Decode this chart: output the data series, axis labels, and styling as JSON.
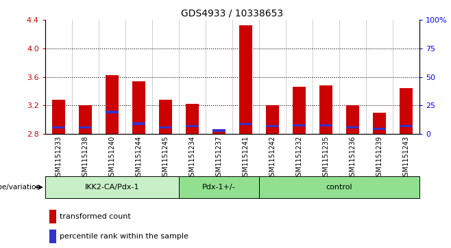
{
  "title": "GDS4933 / 10338653",
  "samples": [
    "GSM1151233",
    "GSM1151238",
    "GSM1151240",
    "GSM1151244",
    "GSM1151245",
    "GSM1151234",
    "GSM1151237",
    "GSM1151241",
    "GSM1151242",
    "GSM1151232",
    "GSM1151235",
    "GSM1151236",
    "GSM1151239",
    "GSM1151243"
  ],
  "group_labels": [
    "IKK2-CA/Pdx-1",
    "Pdx-1+/-",
    "control"
  ],
  "group_starts": [
    0,
    5,
    8
  ],
  "group_ends": [
    5,
    8,
    14
  ],
  "group_colors": [
    "#c8f0c8",
    "#90e090",
    "#90e090"
  ],
  "red_top": [
    3.28,
    3.2,
    3.62,
    3.54,
    3.28,
    3.22,
    2.83,
    4.32,
    3.2,
    3.46,
    3.48,
    3.2,
    3.1,
    3.44
  ],
  "blue_pos": [
    2.875,
    2.875,
    3.09,
    2.925,
    2.875,
    2.895,
    2.825,
    2.925,
    2.895,
    2.905,
    2.905,
    2.875,
    2.855,
    2.895
  ],
  "blue_height": [
    0.03,
    0.03,
    0.035,
    0.035,
    0.03,
    0.03,
    0.04,
    0.03,
    0.03,
    0.03,
    0.03,
    0.03,
    0.03,
    0.03
  ],
  "ylim_left": [
    2.8,
    4.4
  ],
  "ylim_right": [
    0,
    100
  ],
  "yticks_left": [
    2.8,
    3.2,
    3.6,
    4.0,
    4.4
  ],
  "yticks_right": [
    0,
    25,
    50,
    75,
    100
  ],
  "ytick_labels_right": [
    "0",
    "25",
    "50",
    "75",
    "100%"
  ],
  "hlines": [
    3.2,
    3.6,
    4.0
  ],
  "bar_bottom": 2.8,
  "bar_width": 0.5,
  "red_color": "#cc0000",
  "blue_color": "#3333cc",
  "label_transformed": "transformed count",
  "label_percentile": "percentile rank within the sample",
  "xlabel_genotype": "genotype/variation",
  "title_fontsize": 10,
  "tick_fontsize": 7.5,
  "bar_label_fontsize": 7
}
